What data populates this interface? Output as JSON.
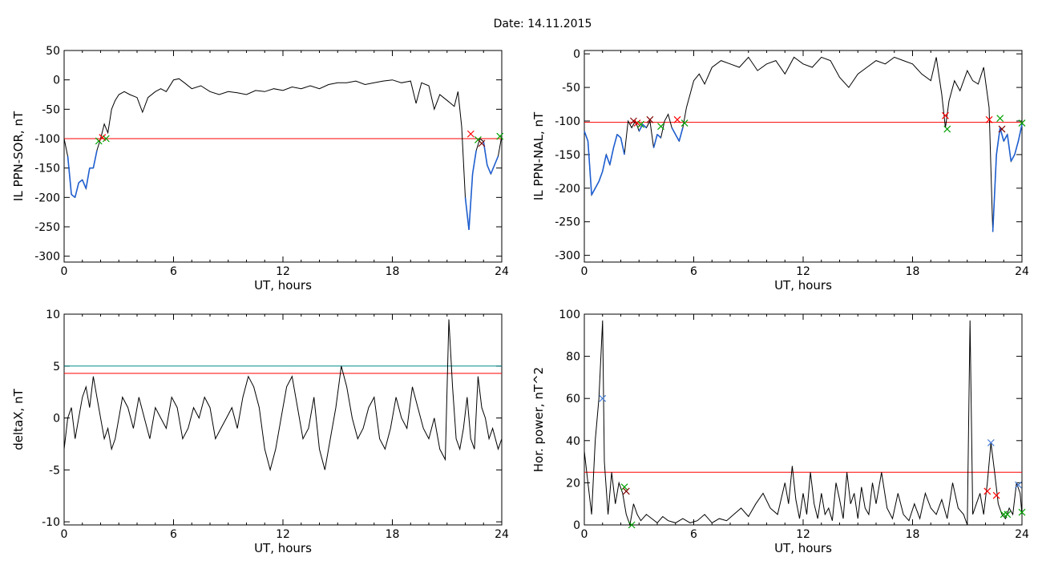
{
  "figure": {
    "title": "Date:  14.11.2015"
  },
  "colors": {
    "signal": "#000000",
    "highlight": "#1f5fd0",
    "threshold": "#ff0000",
    "threshold2": "#008b8b",
    "marker_red": "#ff0000",
    "marker_green": "#00a000",
    "marker_dark": "#800000",
    "marker_blue": "#4a7fd6"
  },
  "chart_data": [
    {
      "id": "sor",
      "type": "line",
      "xlabel": "UT, hours",
      "ylabel": "IL PPN-SOR, nT",
      "xlim": [
        0,
        24
      ],
      "ylim": [
        -310,
        50
      ],
      "xticks": [
        0,
        6,
        12,
        18,
        24
      ],
      "yticks": [
        50,
        0,
        -50,
        -100,
        -150,
        -200,
        -250,
        -300
      ],
      "grid": false,
      "thresholds": [
        {
          "value": -100,
          "color": "#ff0000"
        }
      ],
      "series": [
        {
          "x": [
            0,
            0.2,
            0.4,
            0.6,
            0.8,
            1.0,
            1.2,
            1.4,
            1.6,
            1.8,
            2.0,
            2.2,
            2.4,
            2.6,
            2.8,
            3.0,
            3.3,
            3.6,
            4.0,
            4.3,
            4.6,
            5.0,
            5.3,
            5.6,
            6.0,
            6.3,
            6.6,
            7.0,
            7.5,
            8.0,
            8.5,
            9.0,
            9.5,
            10.0,
            10.5,
            11.0,
            11.5,
            12.0,
            12.5,
            13.0,
            13.5,
            14.0,
            14.5,
            15.0,
            15.5,
            16.0,
            16.5,
            17.0,
            17.5,
            18.0,
            18.5,
            19.0,
            19.3,
            19.6,
            20.0,
            20.3,
            20.6,
            21.0,
            21.2,
            21.4,
            21.6,
            21.8,
            22.0,
            22.2,
            22.4,
            22.6,
            22.8,
            23.0,
            23.2,
            23.4,
            23.6,
            23.8,
            24.0
          ],
          "y": [
            -100,
            -130,
            -195,
            -200,
            -175,
            -170,
            -185,
            -150,
            -150,
            -120,
            -100,
            -75,
            -90,
            -50,
            -35,
            -25,
            -20,
            -25,
            -30,
            -55,
            -30,
            -20,
            -15,
            -20,
            0,
            2,
            -5,
            -15,
            -10,
            -20,
            -25,
            -20,
            -22,
            -25,
            -18,
            -20,
            -15,
            -18,
            -12,
            -15,
            -10,
            -15,
            -8,
            -5,
            -5,
            -2,
            -8,
            -5,
            -2,
            0,
            -5,
            -2,
            -40,
            -5,
            -10,
            -50,
            -25,
            -35,
            -40,
            -45,
            -20,
            -80,
            -200,
            -255,
            -160,
            -120,
            -100,
            -105,
            -145,
            -160,
            -145,
            -130,
            -95
          ]
        }
      ],
      "markers": [
        {
          "x": 1.9,
          "y": -104,
          "color": "#00a000"
        },
        {
          "x": 2.1,
          "y": -98,
          "color": "#ff0000"
        },
        {
          "x": 2.3,
          "y": -100,
          "color": "#00a000"
        },
        {
          "x": 22.3,
          "y": -92,
          "color": "#ff0000"
        },
        {
          "x": 22.7,
          "y": -102,
          "color": "#00a000"
        },
        {
          "x": 22.9,
          "y": -108,
          "color": "#800000"
        },
        {
          "x": 23.9,
          "y": -96,
          "color": "#00a000"
        }
      ]
    },
    {
      "id": "nal",
      "type": "line",
      "xlabel": "UT, hours",
      "ylabel": "IL PPN-NAL, nT",
      "xlim": [
        0,
        24
      ],
      "ylim": [
        -310,
        5
      ],
      "xticks": [
        0,
        6,
        12,
        18,
        24
      ],
      "yticks": [
        0,
        -50,
        -100,
        -150,
        -200,
        -250,
        -300
      ],
      "grid": false,
      "thresholds": [
        {
          "value": -102,
          "color": "#ff0000"
        }
      ],
      "series": [
        {
          "x": [
            0,
            0.2,
            0.4,
            0.6,
            0.8,
            1.0,
            1.2,
            1.4,
            1.6,
            1.8,
            2.0,
            2.2,
            2.4,
            2.6,
            2.8,
            3.0,
            3.2,
            3.4,
            3.6,
            3.8,
            4.0,
            4.2,
            4.4,
            4.6,
            4.8,
            5.0,
            5.2,
            5.4,
            5.6,
            5.8,
            6.0,
            6.3,
            6.6,
            7.0,
            7.5,
            8.0,
            8.5,
            9.0,
            9.5,
            10.0,
            10.5,
            11.0,
            11.5,
            12.0,
            12.5,
            13.0,
            13.5,
            14.0,
            14.5,
            15.0,
            15.5,
            16.0,
            16.5,
            17.0,
            17.5,
            18.0,
            18.5,
            19.0,
            19.3,
            19.6,
            19.8,
            20.0,
            20.3,
            20.6,
            21.0,
            21.3,
            21.6,
            21.9,
            22.2,
            22.4,
            22.6,
            22.8,
            23.0,
            23.2,
            23.4,
            23.6,
            23.8,
            24.0
          ],
          "y": [
            -115,
            -130,
            -210,
            -200,
            -190,
            -175,
            -150,
            -165,
            -140,
            -120,
            -125,
            -150,
            -100,
            -110,
            -100,
            -115,
            -105,
            -110,
            -100,
            -140,
            -120,
            -125,
            -100,
            -90,
            -110,
            -120,
            -130,
            -110,
            -80,
            -60,
            -40,
            -30,
            -45,
            -20,
            -10,
            -15,
            -20,
            -5,
            -25,
            -15,
            -10,
            -30,
            -5,
            -15,
            -20,
            -5,
            -10,
            -35,
            -50,
            -30,
            -20,
            -10,
            -15,
            -5,
            -10,
            -15,
            -30,
            -40,
            -5,
            -60,
            -110,
            -70,
            -40,
            -55,
            -25,
            -40,
            -45,
            -20,
            -80,
            -265,
            -150,
            -110,
            -130,
            -120,
            -160,
            -150,
            -130,
            -105
          ]
        }
      ],
      "markers": [
        {
          "x": 2.7,
          "y": -100,
          "color": "#800000"
        },
        {
          "x": 2.9,
          "y": -103,
          "color": "#ff0000"
        },
        {
          "x": 3.1,
          "y": -105,
          "color": "#00a000"
        },
        {
          "x": 3.6,
          "y": -98,
          "color": "#800000"
        },
        {
          "x": 4.2,
          "y": -108,
          "color": "#00a000"
        },
        {
          "x": 5.1,
          "y": -98,
          "color": "#ff0000"
        },
        {
          "x": 5.5,
          "y": -103,
          "color": "#00a000"
        },
        {
          "x": 19.8,
          "y": -92,
          "color": "#ff0000"
        },
        {
          "x": 19.9,
          "y": -112,
          "color": "#00a000"
        },
        {
          "x": 22.2,
          "y": -98,
          "color": "#ff0000"
        },
        {
          "x": 22.8,
          "y": -96,
          "color": "#00a000"
        },
        {
          "x": 22.9,
          "y": -112,
          "color": "#800000"
        },
        {
          "x": 24.0,
          "y": -103,
          "color": "#00a000"
        }
      ]
    },
    {
      "id": "deltax",
      "type": "line",
      "xlabel": "UT, hours",
      "ylabel": "deltaX, nT",
      "xlim": [
        0,
        24
      ],
      "ylim": [
        -10.3,
        10
      ],
      "xticks": [
        0,
        6,
        12,
        18,
        24
      ],
      "yticks": [
        10,
        5,
        0,
        -5,
        -10
      ],
      "grid": false,
      "thresholds": [
        {
          "value": 5.0,
          "color": "#008b8b"
        },
        {
          "value": 4.3,
          "color": "#ff0000"
        }
      ],
      "series": [
        {
          "x": [
            0,
            0.2,
            0.4,
            0.6,
            0.8,
            1.0,
            1.2,
            1.4,
            1.6,
            1.8,
            2.0,
            2.2,
            2.4,
            2.6,
            2.8,
            3.0,
            3.2,
            3.5,
            3.8,
            4.1,
            4.4,
            4.7,
            5.0,
            5.3,
            5.6,
            5.9,
            6.2,
            6.5,
            6.8,
            7.1,
            7.4,
            7.7,
            8.0,
            8.3,
            8.6,
            8.9,
            9.2,
            9.5,
            9.8,
            10.1,
            10.4,
            10.7,
            11.0,
            11.3,
            11.6,
            11.9,
            12.2,
            12.5,
            12.8,
            13.1,
            13.4,
            13.7,
            14.0,
            14.3,
            14.6,
            14.9,
            15.2,
            15.5,
            15.8,
            16.1,
            16.4,
            16.7,
            17.0,
            17.3,
            17.6,
            17.9,
            18.2,
            18.5,
            18.8,
            19.1,
            19.4,
            19.7,
            20.0,
            20.3,
            20.6,
            20.9,
            21.1,
            21.3,
            21.5,
            21.7,
            21.9,
            22.1,
            22.3,
            22.5,
            22.7,
            22.9,
            23.1,
            23.3,
            23.5,
            23.8,
            24.0
          ],
          "y": [
            -3,
            0,
            1,
            -2,
            0,
            2,
            3,
            1,
            4,
            2,
            0,
            -2,
            -1,
            -3,
            -2,
            0,
            2,
            1,
            -1,
            2,
            0,
            -2,
            1,
            0,
            -1,
            2,
            1,
            -2,
            -1,
            1,
            0,
            2,
            1,
            -2,
            -1,
            0,
            1,
            -1,
            2,
            4,
            3,
            1,
            -3,
            -5,
            -3,
            0,
            3,
            4,
            1,
            -2,
            -1,
            2,
            -3,
            -5,
            -2,
            1,
            5,
            3,
            0,
            -2,
            -1,
            1,
            2,
            -2,
            -3,
            -1,
            2,
            0,
            -1,
            3,
            1,
            -1,
            -2,
            0,
            -3,
            -4,
            9.5,
            3,
            -2,
            -3,
            -1,
            2,
            -2,
            -3,
            4,
            1,
            0,
            -2,
            -1,
            -3,
            -2
          ]
        }
      ],
      "markers": []
    },
    {
      "id": "power",
      "type": "line",
      "xlabel": "UT, hours",
      "ylabel": "Hor. power, nT^2",
      "xlim": [
        0,
        24
      ],
      "ylim": [
        0,
        100
      ],
      "xticks": [
        0,
        6,
        12,
        18,
        24
      ],
      "yticks": [
        100,
        80,
        60,
        40,
        20,
        0
      ],
      "grid": false,
      "thresholds": [
        {
          "value": 25,
          "color": "#ff0000"
        }
      ],
      "series": [
        {
          "x": [
            0,
            0.2,
            0.4,
            0.6,
            0.8,
            1.0,
            1.1,
            1.3,
            1.5,
            1.7,
            1.9,
            2.1,
            2.3,
            2.5,
            2.7,
            2.9,
            3.1,
            3.4,
            3.7,
            4.0,
            4.3,
            4.6,
            5.0,
            5.4,
            5.8,
            6.2,
            6.6,
            7.0,
            7.4,
            7.8,
            8.2,
            8.6,
            9.0,
            9.4,
            9.8,
            10.2,
            10.6,
            11.0,
            11.2,
            11.4,
            11.6,
            11.8,
            12.0,
            12.2,
            12.4,
            12.6,
            12.8,
            13.0,
            13.2,
            13.4,
            13.6,
            13.8,
            14.0,
            14.2,
            14.4,
            14.6,
            14.8,
            15.0,
            15.2,
            15.4,
            15.6,
            15.8,
            16.0,
            16.3,
            16.6,
            16.9,
            17.2,
            17.5,
            17.8,
            18.1,
            18.4,
            18.7,
            19.0,
            19.3,
            19.6,
            19.9,
            20.2,
            20.5,
            20.8,
            21.0,
            21.15,
            21.3,
            21.5,
            21.7,
            21.9,
            22.1,
            22.3,
            22.5,
            22.7,
            22.9,
            23.1,
            23.3,
            23.5,
            23.7,
            23.9,
            24.0
          ],
          "y": [
            35,
            20,
            5,
            40,
            60,
            97,
            30,
            5,
            25,
            10,
            20,
            15,
            5,
            0,
            10,
            5,
            2,
            5,
            3,
            1,
            4,
            2,
            1,
            3,
            1,
            2,
            5,
            1,
            3,
            2,
            5,
            8,
            4,
            10,
            15,
            8,
            5,
            20,
            10,
            28,
            12,
            3,
            15,
            5,
            25,
            10,
            3,
            15,
            5,
            8,
            2,
            20,
            12,
            3,
            25,
            10,
            15,
            3,
            18,
            8,
            5,
            20,
            10,
            25,
            8,
            3,
            15,
            5,
            2,
            10,
            3,
            15,
            8,
            5,
            12,
            3,
            20,
            8,
            5,
            0,
            97,
            5,
            10,
            15,
            5,
            20,
            39,
            25,
            10,
            5,
            3,
            8,
            5,
            20,
            15,
            5
          ]
        }
      ],
      "markers": [
        {
          "x": 1.0,
          "y": 60,
          "color": "#4a7fd6"
        },
        {
          "x": 2.2,
          "y": 18,
          "color": "#00a000"
        },
        {
          "x": 2.3,
          "y": 16,
          "color": "#800000"
        },
        {
          "x": 2.6,
          "y": 0,
          "color": "#00a000"
        },
        {
          "x": 22.1,
          "y": 16,
          "color": "#ff0000"
        },
        {
          "x": 22.3,
          "y": 39,
          "color": "#4a7fd6"
        },
        {
          "x": 22.6,
          "y": 14,
          "color": "#ff0000"
        },
        {
          "x": 23.0,
          "y": 5,
          "color": "#00a000"
        },
        {
          "x": 23.2,
          "y": 5,
          "color": "#00a000"
        },
        {
          "x": 23.8,
          "y": 19,
          "color": "#4a7fd6"
        },
        {
          "x": 24.0,
          "y": 6,
          "color": "#00a000"
        }
      ]
    }
  ]
}
